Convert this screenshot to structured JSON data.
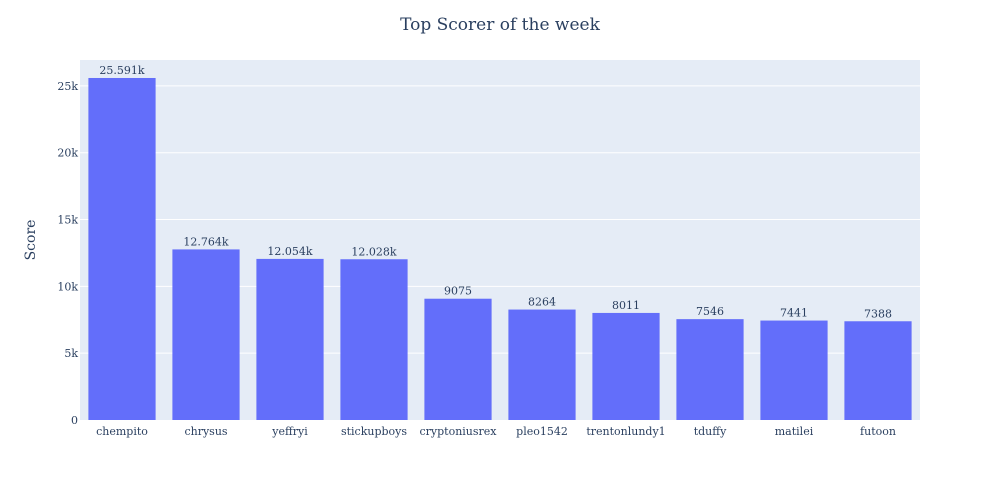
{
  "chart_data": {
    "type": "bar",
    "title": "Top Scorer of the week",
    "xlabel": "",
    "ylabel": "Score",
    "categories": [
      "chempito",
      "chrysus",
      "yeffryi",
      "stickupboys",
      "cryptoniusrex",
      "pleo1542",
      "trentonlundy1",
      "tduffy",
      "matilei",
      "futoon"
    ],
    "values": [
      25591,
      12764,
      12054,
      12028,
      9075,
      8264,
      8011,
      7546,
      7441,
      7388
    ],
    "data_labels": [
      "25.591k",
      "12.764k",
      "12.054k",
      "12.028k",
      "9075",
      "8264",
      "8011",
      "7546",
      "7441",
      "7388"
    ],
    "ylim": [
      0,
      26937
    ],
    "yticks": [
      0,
      5000,
      10000,
      15000,
      20000,
      25000
    ],
    "ytick_labels": [
      "0",
      "5k",
      "10k",
      "15k",
      "20k",
      "25k"
    ],
    "grid": true,
    "legend": "none",
    "colors": {
      "bar": "#636efa",
      "plot_bg": "#e5ecf6",
      "grid": "#ffffff",
      "text": "#2a3f5f"
    }
  }
}
